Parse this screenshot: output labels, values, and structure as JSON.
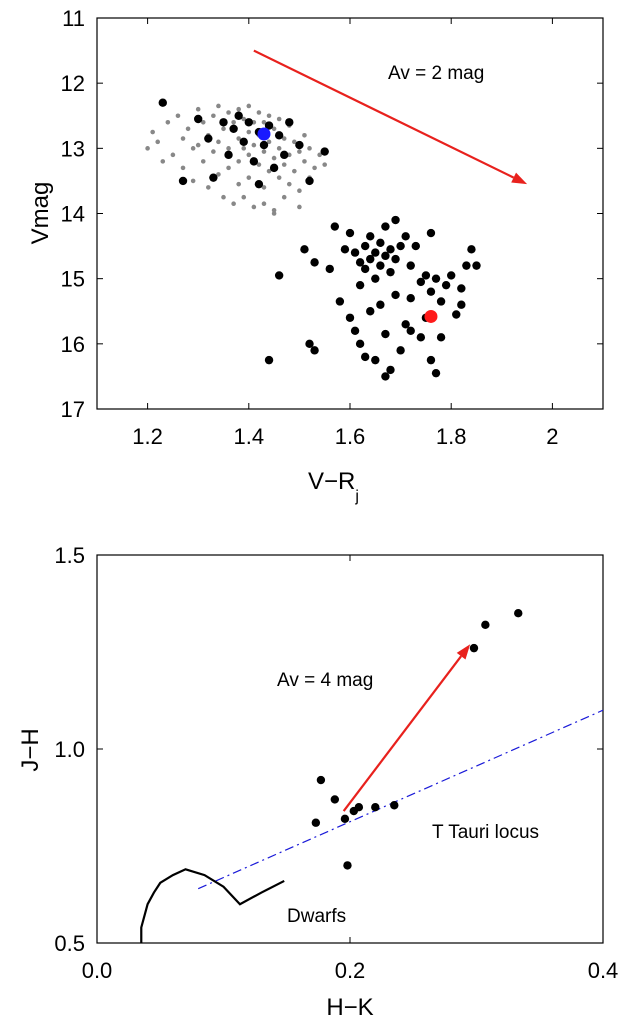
{
  "chart_data": [
    {
      "type": "scatter",
      "xlabel_main": "V−R",
      "xlabel_sub": "j",
      "ylabel": "Vmag",
      "xlim": [
        1.1,
        2.1
      ],
      "ylim": [
        17,
        11
      ],
      "y_axis_inverted": true,
      "x_ticks": [
        "1.2",
        "1.4",
        "1.6",
        "1.8",
        "2"
      ],
      "y_ticks": [
        "11",
        "12",
        "13",
        "14",
        "15",
        "16",
        "17"
      ],
      "annotation": "Av = 2 mag",
      "reddening_arrow": {
        "from": [
          1.41,
          11.5
        ],
        "to": [
          1.95,
          13.55
        ],
        "color": "#e8211d"
      },
      "series": [
        {
          "marker": "small-dot",
          "color": "#888888",
          "points": [
            [
              1.2,
              13.0
            ],
            [
              1.21,
              12.75
            ],
            [
              1.22,
              12.9
            ],
            [
              1.23,
              13.2
            ],
            [
              1.24,
              12.6
            ],
            [
              1.25,
              13.1
            ],
            [
              1.26,
              12.5
            ],
            [
              1.27,
              12.85
            ],
            [
              1.27,
              13.3
            ],
            [
              1.28,
              12.7
            ],
            [
              1.29,
              13.0
            ],
            [
              1.29,
              13.5
            ],
            [
              1.3,
              12.4
            ],
            [
              1.3,
              12.95
            ],
            [
              1.31,
              12.6
            ],
            [
              1.31,
              13.2
            ],
            [
              1.32,
              12.8
            ],
            [
              1.32,
              13.6
            ],
            [
              1.33,
              12.5
            ],
            [
              1.33,
              13.05
            ],
            [
              1.34,
              12.35
            ],
            [
              1.34,
              12.9
            ],
            [
              1.34,
              13.4
            ],
            [
              1.35,
              12.7
            ],
            [
              1.35,
              13.75
            ],
            [
              1.36,
              12.45
            ],
            [
              1.36,
              13.0
            ],
            [
              1.36,
              13.3
            ],
            [
              1.37,
              12.6
            ],
            [
              1.37,
              13.85
            ],
            [
              1.38,
              12.4
            ],
            [
              1.38,
              12.85
            ],
            [
              1.38,
              13.2
            ],
            [
              1.38,
              13.55
            ],
            [
              1.39,
              12.55
            ],
            [
              1.39,
              13.0
            ],
            [
              1.4,
              12.35
            ],
            [
              1.4,
              12.75
            ],
            [
              1.4,
              13.1
            ],
            [
              1.4,
              13.45
            ],
            [
              1.41,
              12.6
            ],
            [
              1.41,
              12.95
            ],
            [
              1.41,
              13.9
            ],
            [
              1.42,
              12.45
            ],
            [
              1.42,
              12.8
            ],
            [
              1.42,
              13.25
            ],
            [
              1.43,
              12.6
            ],
            [
              1.43,
              13.05
            ],
            [
              1.43,
              13.6
            ],
            [
              1.44,
              12.5
            ],
            [
              1.44,
              12.9
            ],
            [
              1.44,
              13.35
            ],
            [
              1.45,
              12.7
            ],
            [
              1.45,
              13.15
            ],
            [
              1.45,
              13.95
            ],
            [
              1.46,
              12.55
            ],
            [
              1.46,
              13.0
            ],
            [
              1.46,
              13.45
            ],
            [
              1.47,
              12.85
            ],
            [
              1.47,
              13.25
            ],
            [
              1.47,
              13.75
            ],
            [
              1.48,
              12.65
            ],
            [
              1.48,
              13.1
            ],
            [
              1.48,
              13.55
            ],
            [
              1.49,
              12.9
            ],
            [
              1.49,
              13.35
            ],
            [
              1.5,
              13.05
            ],
            [
              1.5,
              13.65
            ],
            [
              1.51,
              12.8
            ],
            [
              1.51,
              13.2
            ],
            [
              1.52,
              13.0
            ],
            [
              1.52,
              13.45
            ],
            [
              1.53,
              13.3
            ],
            [
              1.54,
              13.1
            ],
            [
              1.55,
              13.25
            ],
            [
              1.45,
              14.0
            ],
            [
              1.5,
              13.9
            ],
            [
              1.39,
              13.75
            ],
            [
              1.43,
              13.85
            ]
          ]
        },
        {
          "marker": "dot",
          "color": "#000000",
          "points": [
            [
              1.23,
              12.3
            ],
            [
              1.27,
              13.5
            ],
            [
              1.3,
              12.55
            ],
            [
              1.32,
              12.85
            ],
            [
              1.33,
              13.45
            ],
            [
              1.35,
              12.6
            ],
            [
              1.36,
              13.1
            ],
            [
              1.37,
              12.7
            ],
            [
              1.38,
              12.5
            ],
            [
              1.39,
              12.9
            ],
            [
              1.4,
              12.6
            ],
            [
              1.41,
              13.2
            ],
            [
              1.42,
              12.75
            ],
            [
              1.42,
              13.55
            ],
            [
              1.43,
              12.95
            ],
            [
              1.44,
              12.65
            ],
            [
              1.45,
              13.3
            ],
            [
              1.46,
              12.8
            ],
            [
              1.47,
              13.1
            ],
            [
              1.48,
              12.6
            ],
            [
              1.5,
              12.95
            ],
            [
              1.52,
              13.5
            ],
            [
              1.55,
              13.05
            ],
            [
              1.44,
              16.25
            ],
            [
              1.46,
              14.95
            ],
            [
              1.51,
              14.55
            ],
            [
              1.52,
              16.0
            ],
            [
              1.53,
              16.1
            ],
            [
              1.53,
              14.75
            ],
            [
              1.56,
              14.85
            ],
            [
              1.57,
              14.2
            ],
            [
              1.58,
              15.35
            ],
            [
              1.59,
              14.55
            ],
            [
              1.6,
              14.3
            ],
            [
              1.6,
              15.6
            ],
            [
              1.61,
              14.6
            ],
            [
              1.61,
              15.8
            ],
            [
              1.62,
              14.75
            ],
            [
              1.62,
              15.1
            ],
            [
              1.62,
              16.0
            ],
            [
              1.63,
              14.5
            ],
            [
              1.63,
              14.85
            ],
            [
              1.63,
              16.2
            ],
            [
              1.64,
              14.35
            ],
            [
              1.64,
              14.7
            ],
            [
              1.64,
              15.5
            ],
            [
              1.65,
              14.6
            ],
            [
              1.65,
              15.0
            ],
            [
              1.65,
              16.25
            ],
            [
              1.66,
              14.45
            ],
            [
              1.66,
              14.8
            ],
            [
              1.66,
              15.4
            ],
            [
              1.67,
              14.2
            ],
            [
              1.67,
              14.65
            ],
            [
              1.67,
              15.85
            ],
            [
              1.67,
              16.5
            ],
            [
              1.68,
              14.55
            ],
            [
              1.68,
              14.9
            ],
            [
              1.68,
              16.4
            ],
            [
              1.69,
              14.1
            ],
            [
              1.69,
              14.7
            ],
            [
              1.69,
              15.25
            ],
            [
              1.7,
              14.5
            ],
            [
              1.7,
              16.1
            ],
            [
              1.71,
              14.35
            ],
            [
              1.71,
              15.7
            ],
            [
              1.72,
              14.8
            ],
            [
              1.72,
              15.3
            ],
            [
              1.73,
              14.5
            ],
            [
              1.74,
              15.05
            ],
            [
              1.74,
              15.9
            ],
            [
              1.75,
              14.95
            ],
            [
              1.75,
              15.6
            ],
            [
              1.76,
              14.3
            ],
            [
              1.76,
              15.2
            ],
            [
              1.76,
              16.25
            ],
            [
              1.77,
              15.0
            ],
            [
              1.77,
              16.45
            ],
            [
              1.78,
              15.35
            ],
            [
              1.79,
              15.1
            ],
            [
              1.8,
              14.95
            ],
            [
              1.81,
              15.55
            ],
            [
              1.82,
              15.15
            ],
            [
              1.83,
              14.8
            ],
            [
              1.84,
              14.55
            ],
            [
              1.85,
              14.8
            ],
            [
              1.78,
              15.9
            ],
            [
              1.72,
              15.8
            ],
            [
              1.82,
              15.4
            ]
          ]
        },
        {
          "name": "",
          "marker": "big-dot",
          "color": "#1a1aff",
          "points": [
            [
              1.43,
              12.78
            ]
          ]
        },
        {
          "name": "",
          "marker": "big-dot",
          "color": "#ff1a1a",
          "points": [
            [
              1.76,
              15.58
            ]
          ]
        }
      ]
    },
    {
      "type": "scatter",
      "xlabel": "H−K",
      "ylabel": "J−H",
      "xlim": [
        0.0,
        0.4
      ],
      "ylim": [
        0.5,
        1.5
      ],
      "x_ticks": [
        "0.0",
        "0.2",
        "0.4"
      ],
      "y_ticks": [
        "0.5",
        "1.0",
        "1.5"
      ],
      "annotation_arrow": "Av = 4 mag",
      "annotation_locus": "T Tauri locus",
      "annotation_dwarfs": "Dwarfs",
      "reddening_arrow": {
        "from": [
          0.195,
          0.84
        ],
        "to": [
          0.295,
          1.27
        ],
        "color": "#e8211d"
      },
      "locus_line": {
        "from": [
          0.08,
          0.64
        ],
        "to": [
          0.4,
          1.1
        ],
        "color": "#1a1ad8",
        "style": "dash-dot"
      },
      "dwarf_track": [
        [
          0.035,
          0.5
        ],
        [
          0.035,
          0.54
        ],
        [
          0.04,
          0.6
        ],
        [
          0.045,
          0.63
        ],
        [
          0.05,
          0.655
        ],
        [
          0.06,
          0.675
        ],
        [
          0.07,
          0.69
        ],
        [
          0.085,
          0.675
        ],
        [
          0.1,
          0.645
        ],
        [
          0.113,
          0.6
        ],
        [
          0.13,
          0.63
        ],
        [
          0.148,
          0.66
        ]
      ],
      "series": [
        {
          "marker": "dot",
          "color": "#000000",
          "points": [
            [
              0.173,
              0.81
            ],
            [
              0.177,
              0.92
            ],
            [
              0.188,
              0.87
            ],
            [
              0.196,
              0.82
            ],
            [
              0.198,
              0.7
            ],
            [
              0.203,
              0.84
            ],
            [
              0.207,
              0.85
            ],
            [
              0.22,
              0.85
            ],
            [
              0.235,
              0.855
            ],
            [
              0.298,
              1.26
            ],
            [
              0.307,
              1.32
            ],
            [
              0.333,
              1.35
            ]
          ]
        }
      ]
    }
  ]
}
